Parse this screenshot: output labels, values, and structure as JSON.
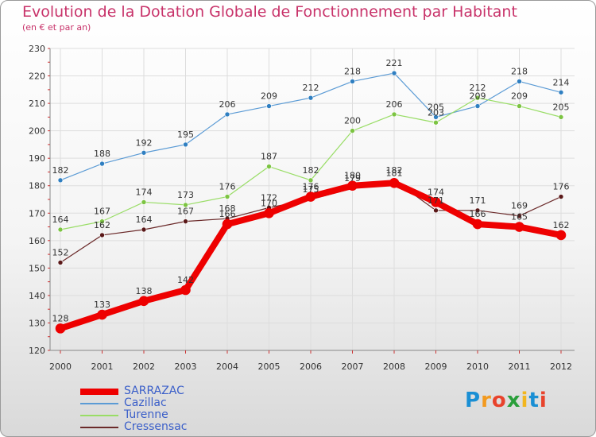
{
  "title": "Evolution de la Dotation Globale de Fonctionnement par Habitant",
  "subtitle": "(en € et par an)",
  "logo": {
    "text": "Proxiti",
    "letters": [
      [
        "P",
        "#1a8fd4"
      ],
      [
        "r",
        "#f29a1f"
      ],
      [
        "o",
        "#e8432c"
      ],
      [
        "x",
        "#2a9f3b"
      ],
      [
        "i",
        "#f2b61f"
      ],
      [
        "t",
        "#1a8fd4"
      ],
      [
        "i",
        "#e8432c"
      ]
    ]
  },
  "chart_data": {
    "type": "line",
    "x": [
      "2000",
      "2001",
      "2002",
      "2003",
      "2004",
      "2005",
      "2006",
      "2007",
      "2008",
      "2009",
      "2010",
      "2011",
      "2012"
    ],
    "ylim": [
      120,
      230
    ],
    "yticks": [
      120,
      130,
      140,
      150,
      160,
      170,
      180,
      190,
      200,
      210,
      220,
      230
    ],
    "grid": true,
    "series": [
      {
        "name": "Cazillac",
        "color": "#5b9bd5",
        "dot": "#2f7fc1",
        "width": 1.2,
        "values": [
          182,
          188,
          192,
          195,
          206,
          209,
          212,
          218,
          221,
          205,
          209,
          218,
          214
        ],
        "label_pos": "above"
      },
      {
        "name": "Turenne",
        "color": "#99dd66",
        "dot": "#7cc442",
        "width": 1.2,
        "values": [
          164,
          167,
          174,
          173,
          176,
          187,
          182,
          200,
          206,
          203,
          212,
          209,
          205
        ],
        "label_pos": "above"
      },
      {
        "name": "Cressensac",
        "color": "#6b2a2a",
        "dot": "#5a1818",
        "width": 1.2,
        "values": [
          152,
          162,
          164,
          167,
          168,
          172,
          175,
          179,
          182,
          171,
          171,
          169,
          176
        ],
        "label_pos": "above"
      },
      {
        "name": "SARRAZAC",
        "color": "#ee0000",
        "dot": "#ee0000",
        "width": 8,
        "values": [
          128,
          133,
          138,
          142,
          166,
          170,
          176,
          180,
          181,
          174,
          166,
          165,
          162
        ],
        "label_pos": "above"
      }
    ],
    "legend": [
      {
        "name": "SARRAZAC",
        "color": "#ee0000",
        "width": 8
      },
      {
        "name": "Cazillac",
        "color": "#5b9bd5",
        "width": 2
      },
      {
        "name": "Turenne",
        "color": "#99dd66",
        "width": 2
      },
      {
        "name": "Cressensac",
        "color": "#6b2a2a",
        "width": 2
      }
    ]
  }
}
